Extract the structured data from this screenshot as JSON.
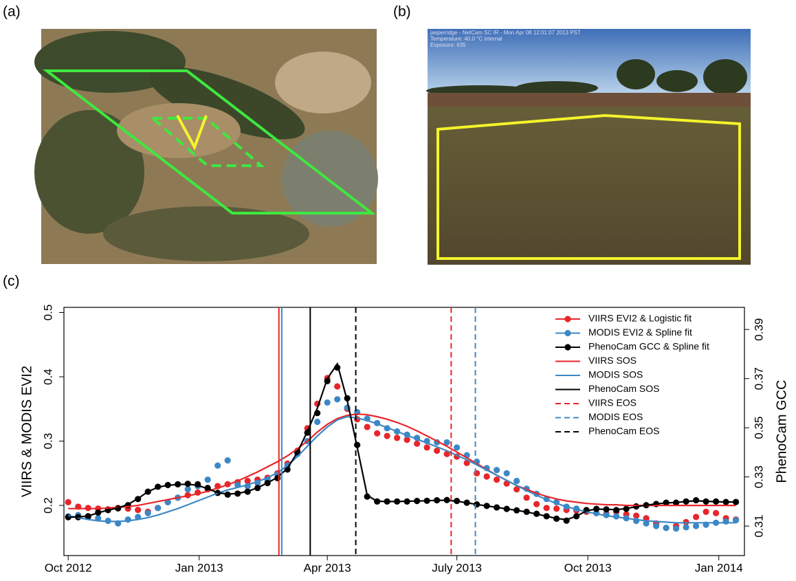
{
  "panel_labels": [
    "(a)",
    "(b)",
    "(c)"
  ],
  "webcam_overlay": [
    "jasperridge - NetCam SC IR - Mon Apr 08 12:01:07 2013 PST",
    "Temperature: 40.0 °C internal",
    "Exposure: 635"
  ],
  "chart_data": {
    "type": "scatter",
    "y_label": "VIIRS & MODIS EVI2",
    "y2_label": "PhenoCam GCC",
    "xlim": [
      -3,
      475
    ],
    "xticks": [
      {
        "value": 0,
        "label": "Oct 2012"
      },
      {
        "value": 92,
        "label": "Jan 2013"
      },
      {
        "value": 182,
        "label": "Apr 2013"
      },
      {
        "value": 273,
        "label": "July 2013"
      },
      {
        "value": 365,
        "label": "Oct 2013"
      },
      {
        "value": 457,
        "label": "Jan 2014"
      }
    ],
    "ylim": [
      0.122,
      0.508
    ],
    "yticks": [
      0.2,
      0.3,
      0.4,
      0.5
    ],
    "y2lim": [
      0.298,
      0.399
    ],
    "y2ticks": [
      0.31,
      0.33,
      0.35,
      0.37,
      0.39
    ],
    "legend": "upper right",
    "x": [
      0,
      7,
      14,
      21,
      28,
      35,
      42,
      49,
      56,
      63,
      70,
      77,
      84,
      91,
      98,
      105,
      112,
      119,
      126,
      133,
      140,
      147,
      154,
      161,
      168,
      175,
      182,
      189,
      196,
      203,
      210,
      217,
      224,
      231,
      238,
      245,
      252,
      259,
      266,
      273,
      280,
      287,
      294,
      301,
      308,
      315,
      322,
      329,
      336,
      343,
      350,
      357,
      364,
      371,
      378,
      385,
      392,
      399,
      406,
      413,
      420,
      427,
      434,
      441,
      448,
      455,
      462,
      469
    ],
    "series": [
      {
        "name": "VIIRS EVI2 & Logistic fit",
        "color": "#e8262a",
        "values": [
          0.205,
          0.198,
          0.196,
          0.195,
          0.194,
          0.196,
          0.195,
          0.193,
          0.19,
          0.196,
          0.205,
          0.212,
          0.216,
          0.22,
          0.225,
          0.23,
          0.233,
          0.236,
          0.238,
          0.24,
          0.243,
          0.25,
          0.265,
          0.285,
          0.32,
          0.358,
          0.398,
          0.385,
          0.35,
          0.334,
          0.322,
          0.312,
          0.308,
          0.305,
          0.302,
          0.296,
          0.29,
          0.285,
          0.28,
          0.276,
          0.266,
          0.25,
          0.245,
          0.24,
          0.234,
          0.225,
          0.212,
          0.202,
          0.196,
          0.195,
          0.193,
          0.192,
          0.19,
          0.188,
          0.187,
          0.19,
          0.186,
          0.184,
          0.18,
          0.172,
          0.165,
          0.168,
          0.174,
          0.182,
          0.19,
          0.188,
          0.18,
          0.178
        ],
        "fit": [
          0.195,
          0.195,
          0.195,
          0.195,
          0.196,
          0.197,
          0.198,
          0.2,
          0.203,
          0.206,
          0.209,
          0.212,
          0.215,
          0.218,
          0.222,
          0.227,
          0.232,
          0.238,
          0.245,
          0.252,
          0.26,
          0.268,
          0.277,
          0.288,
          0.3,
          0.314,
          0.326,
          0.335,
          0.34,
          0.342,
          0.341,
          0.338,
          0.334,
          0.329,
          0.323,
          0.316,
          0.308,
          0.3,
          0.292,
          0.283,
          0.274,
          0.265,
          0.256,
          0.247,
          0.239,
          0.231,
          0.225,
          0.219,
          0.214,
          0.21,
          0.207,
          0.205,
          0.203,
          0.202,
          0.201,
          0.201,
          0.2,
          0.2,
          0.2,
          0.2,
          0.2,
          0.2,
          0.2,
          0.2,
          0.2,
          0.2,
          0.2,
          0.2
        ]
      },
      {
        "name": "MODIS EVI2 & Spline fit",
        "color": "#3c88c6",
        "values": [
          0.183,
          0.185,
          0.182,
          0.18,
          0.176,
          0.172,
          0.178,
          0.182,
          0.188,
          0.196,
          0.205,
          0.212,
          0.225,
          0.23,
          0.24,
          0.262,
          0.27,
          0.232,
          0.23,
          0.235,
          0.24,
          0.248,
          0.262,
          0.28,
          0.3,
          0.33,
          0.36,
          0.365,
          0.352,
          0.345,
          0.335,
          0.328,
          0.32,
          0.315,
          0.31,
          0.305,
          0.3,
          0.298,
          0.298,
          0.29,
          0.278,
          0.268,
          0.258,
          0.255,
          0.25,
          0.238,
          0.226,
          0.218,
          0.21,
          0.205,
          0.198,
          0.195,
          0.192,
          0.188,
          0.185,
          0.183,
          0.18,
          0.176,
          0.172,
          0.168,
          0.165,
          0.164,
          0.166,
          0.168,
          0.17,
          0.173,
          0.175,
          0.177
        ],
        "fit": [
          0.184,
          0.181,
          0.178,
          0.176,
          0.175,
          0.175,
          0.176,
          0.178,
          0.181,
          0.185,
          0.19,
          0.195,
          0.201,
          0.207,
          0.213,
          0.219,
          0.224,
          0.228,
          0.232,
          0.237,
          0.243,
          0.251,
          0.262,
          0.276,
          0.292,
          0.308,
          0.322,
          0.333,
          0.338,
          0.336,
          0.332,
          0.327,
          0.321,
          0.315,
          0.309,
          0.303,
          0.297,
          0.291,
          0.285,
          0.278,
          0.271,
          0.263,
          0.255,
          0.247,
          0.239,
          0.231,
          0.223,
          0.216,
          0.209,
          0.203,
          0.198,
          0.194,
          0.19,
          0.187,
          0.184,
          0.182,
          0.18,
          0.178,
          0.176,
          0.175,
          0.174,
          0.173,
          0.173,
          0.173,
          0.173,
          0.173,
          0.173,
          0.173
        ]
      },
      {
        "name": "PhenoCam GCC & Spline fit",
        "color": "#000000",
        "axis": "y2",
        "values": [
          0.3136,
          0.3136,
          0.314,
          0.3155,
          0.3165,
          0.3172,
          0.3185,
          0.321,
          0.324,
          0.326,
          0.3267,
          0.327,
          0.3272,
          0.327,
          0.3255,
          0.3235,
          0.3228,
          0.3232,
          0.324,
          0.3255,
          0.3275,
          0.3295,
          0.333,
          0.34,
          0.348,
          0.356,
          0.369,
          0.3745,
          0.362,
          0.343,
          0.322,
          0.32,
          0.32,
          0.32,
          0.32,
          0.3202,
          0.3203,
          0.3205,
          0.3206,
          0.3202,
          0.3195,
          0.3188,
          0.3182,
          0.3176,
          0.317,
          0.3164,
          0.3158,
          0.315,
          0.314,
          0.313,
          0.3122,
          0.314,
          0.3165,
          0.317,
          0.3168,
          0.3165,
          0.317,
          0.318,
          0.3185,
          0.319,
          0.3195,
          0.3195,
          0.32,
          0.3205,
          0.32,
          0.32,
          0.3198,
          0.3198
        ],
        "fit": [
          0.3136,
          0.3137,
          0.3141,
          0.3154,
          0.3165,
          0.3174,
          0.3188,
          0.3212,
          0.324,
          0.3258,
          0.3266,
          0.3269,
          0.327,
          0.3266,
          0.3252,
          0.3236,
          0.323,
          0.3233,
          0.3241,
          0.3256,
          0.3276,
          0.3298,
          0.3335,
          0.34,
          0.3485,
          0.358,
          0.37,
          0.376,
          0.361,
          0.342,
          0.3225,
          0.3201,
          0.32,
          0.32,
          0.3201,
          0.3202,
          0.3203,
          0.3205,
          0.3205,
          0.3201,
          0.3195,
          0.3188,
          0.3182,
          0.3176,
          0.317,
          0.3164,
          0.3157,
          0.3149,
          0.314,
          0.3131,
          0.3126,
          0.314,
          0.3162,
          0.3169,
          0.3168,
          0.3167,
          0.3171,
          0.3179,
          0.3185,
          0.319,
          0.3194,
          0.3196,
          0.32,
          0.3203,
          0.3201,
          0.3199,
          0.3198,
          0.3198
        ]
      }
    ],
    "markers": [
      {
        "name": "VIIRS SOS",
        "color": "#e8262a",
        "dashed": false,
        "x": 148
      },
      {
        "name": "MODIS SOS",
        "color": "#3c88c6",
        "dashed": false,
        "x": 150
      },
      {
        "name": "PhenoCam SOS",
        "color": "#000000",
        "dashed": false,
        "x": 170
      },
      {
        "name": "VIIRS EOS",
        "color": "#e8262a",
        "dashed": true,
        "x": 269
      },
      {
        "name": "MODIS EOS",
        "color": "#3c88c6",
        "dashed": true,
        "x": 286
      },
      {
        "name": "PhenoCam EOS",
        "color": "#000000",
        "dashed": true,
        "x": 202
      }
    ]
  }
}
